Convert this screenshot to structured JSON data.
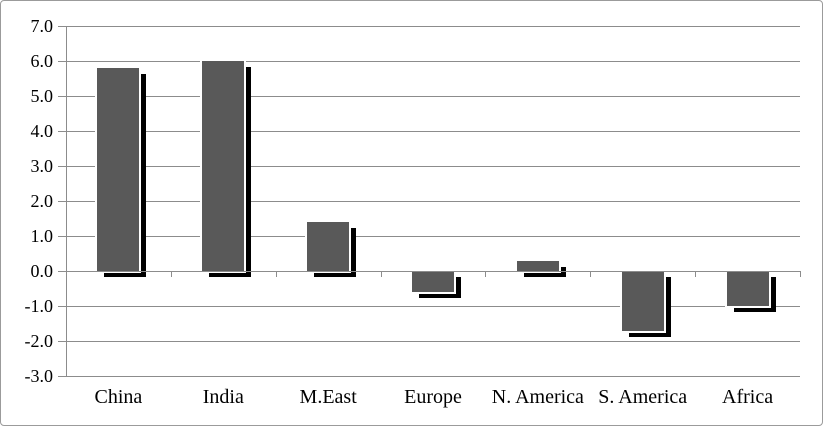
{
  "chart_data": {
    "type": "bar",
    "title": "",
    "xlabel": "",
    "ylabel": "",
    "categories": [
      "China",
      "India",
      "M.East",
      "Europe",
      "N. America",
      "S. America",
      "Africa"
    ],
    "values": [
      5.8,
      6.0,
      1.4,
      -0.6,
      0.3,
      -1.7,
      -1.0
    ],
    "ylim": [
      -3.0,
      7.0
    ],
    "ytick_step": 1.0,
    "ytick_labels": [
      "7.0",
      "6.0",
      "5.0",
      "4.0",
      "3.0",
      "2.0",
      "1.0",
      "0.0",
      "-1.0",
      "-2.0",
      "-3.0"
    ],
    "grid": true,
    "legend": false,
    "bar_color": "#595959",
    "bar_shadow_color": "#000000",
    "axis_color": "#8c8c8c",
    "background_color": "#ffffff"
  }
}
